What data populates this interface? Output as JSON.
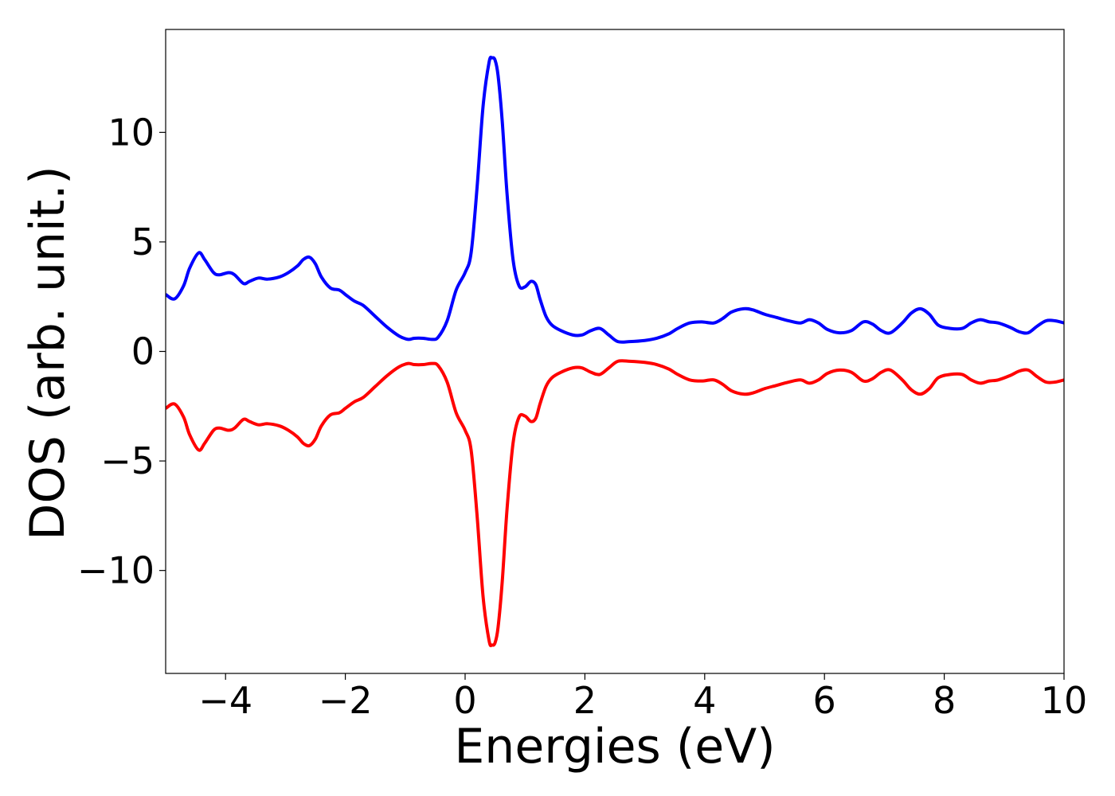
{
  "chart_data": {
    "type": "line",
    "title": "",
    "xlabel": "Energies (eV)",
    "ylabel": "DOS (arb. unit.)",
    "xlim": [
      -5,
      10
    ],
    "ylim": [
      -14.7,
      14.7
    ],
    "xticks": [
      {
        "value": -4,
        "label": "−4"
      },
      {
        "value": -2,
        "label": "−2"
      },
      {
        "value": 0,
        "label": "0"
      },
      {
        "value": 2,
        "label": "2"
      },
      {
        "value": 4,
        "label": "4"
      },
      {
        "value": 6,
        "label": "6"
      },
      {
        "value": 8,
        "label": "8"
      },
      {
        "value": 10,
        "label": "10"
      }
    ],
    "yticks": [
      {
        "value": -10,
        "label": "−10"
      },
      {
        "value": -5,
        "label": "−5"
      },
      {
        "value": 0,
        "label": "0"
      },
      {
        "value": 5,
        "label": "5"
      },
      {
        "value": 10,
        "label": "10"
      }
    ],
    "grid": false,
    "legend": "none",
    "series": [
      {
        "color": "#0000ff",
        "x": [
          -5.0,
          -4.85,
          -4.7,
          -4.6,
          -4.45,
          -4.35,
          -4.2,
          -4.1,
          -3.95,
          -3.85,
          -3.7,
          -3.6,
          -3.45,
          -3.3,
          -3.1,
          -2.95,
          -2.8,
          -2.7,
          -2.6,
          -2.5,
          -2.4,
          -2.25,
          -2.1,
          -2.0,
          -1.85,
          -1.7,
          -1.5,
          -1.3,
          -1.1,
          -0.95,
          -0.85,
          -0.7,
          -0.55,
          -0.45,
          -0.3,
          -0.15,
          0.0,
          0.1,
          0.2,
          0.3,
          0.4,
          0.45,
          0.5,
          0.55,
          0.62,
          0.7,
          0.8,
          0.9,
          1.0,
          1.1,
          1.18,
          1.25,
          1.35,
          1.45,
          1.6,
          1.8,
          1.95,
          2.1,
          2.25,
          2.4,
          2.55,
          2.75,
          3.0,
          3.2,
          3.4,
          3.55,
          3.75,
          3.95,
          4.15,
          4.3,
          4.45,
          4.65,
          4.8,
          5.0,
          5.2,
          5.4,
          5.6,
          5.75,
          5.9,
          6.05,
          6.25,
          6.45,
          6.65,
          6.8,
          6.95,
          7.1,
          7.3,
          7.45,
          7.6,
          7.75,
          7.9,
          8.1,
          8.3,
          8.45,
          8.6,
          8.75,
          8.9,
          9.1,
          9.25,
          9.4,
          9.55,
          9.7,
          9.85,
          10.0
        ],
        "y": [
          2.6,
          2.4,
          3.0,
          3.8,
          4.5,
          4.2,
          3.6,
          3.5,
          3.6,
          3.5,
          3.1,
          3.2,
          3.35,
          3.3,
          3.4,
          3.6,
          3.9,
          4.2,
          4.3,
          4.0,
          3.4,
          2.9,
          2.8,
          2.6,
          2.3,
          2.1,
          1.6,
          1.1,
          0.7,
          0.55,
          0.6,
          0.6,
          0.55,
          0.65,
          1.4,
          2.8,
          3.6,
          4.5,
          7.5,
          11.2,
          13.2,
          13.4,
          13.3,
          12.6,
          10.5,
          7.2,
          4.2,
          3.0,
          2.95,
          3.2,
          3.05,
          2.4,
          1.6,
          1.2,
          0.95,
          0.75,
          0.75,
          0.95,
          1.05,
          0.75,
          0.45,
          0.45,
          0.5,
          0.6,
          0.8,
          1.05,
          1.3,
          1.35,
          1.3,
          1.5,
          1.8,
          1.95,
          1.9,
          1.7,
          1.55,
          1.4,
          1.3,
          1.45,
          1.3,
          1.0,
          0.85,
          0.95,
          1.35,
          1.25,
          0.95,
          0.85,
          1.3,
          1.75,
          1.95,
          1.7,
          1.2,
          1.05,
          1.05,
          1.3,
          1.45,
          1.35,
          1.3,
          1.1,
          0.9,
          0.85,
          1.15,
          1.4,
          1.4,
          1.3
        ]
      },
      {
        "color": "#ff0000",
        "x": [
          -5.0,
          -4.85,
          -4.7,
          -4.6,
          -4.45,
          -4.35,
          -4.2,
          -4.1,
          -3.95,
          -3.85,
          -3.7,
          -3.6,
          -3.45,
          -3.3,
          -3.1,
          -2.95,
          -2.8,
          -2.7,
          -2.6,
          -2.5,
          -2.4,
          -2.25,
          -2.1,
          -2.0,
          -1.85,
          -1.7,
          -1.5,
          -1.3,
          -1.1,
          -0.95,
          -0.85,
          -0.7,
          -0.55,
          -0.45,
          -0.3,
          -0.15,
          0.0,
          0.1,
          0.2,
          0.3,
          0.4,
          0.45,
          0.5,
          0.55,
          0.62,
          0.7,
          0.8,
          0.9,
          1.0,
          1.1,
          1.18,
          1.25,
          1.35,
          1.45,
          1.6,
          1.8,
          1.95,
          2.1,
          2.25,
          2.4,
          2.55,
          2.75,
          3.0,
          3.2,
          3.4,
          3.55,
          3.75,
          3.95,
          4.15,
          4.3,
          4.45,
          4.65,
          4.8,
          5.0,
          5.2,
          5.4,
          5.6,
          5.75,
          5.9,
          6.05,
          6.25,
          6.45,
          6.65,
          6.8,
          6.95,
          7.1,
          7.3,
          7.45,
          7.6,
          7.75,
          7.9,
          8.1,
          8.3,
          8.45,
          8.6,
          8.75,
          8.9,
          9.1,
          9.25,
          9.4,
          9.55,
          9.7,
          9.85,
          10.0
        ],
        "y": [
          -2.6,
          -2.4,
          -3.0,
          -3.8,
          -4.5,
          -4.2,
          -3.6,
          -3.5,
          -3.6,
          -3.5,
          -3.1,
          -3.2,
          -3.35,
          -3.3,
          -3.4,
          -3.6,
          -3.9,
          -4.2,
          -4.3,
          -4.0,
          -3.4,
          -2.9,
          -2.8,
          -2.6,
          -2.3,
          -2.1,
          -1.6,
          -1.1,
          -0.7,
          -0.55,
          -0.6,
          -0.6,
          -0.55,
          -0.65,
          -1.4,
          -2.8,
          -3.6,
          -4.5,
          -7.5,
          -11.2,
          -13.2,
          -13.4,
          -13.3,
          -12.6,
          -10.5,
          -7.2,
          -4.2,
          -3.0,
          -2.95,
          -3.2,
          -3.05,
          -2.4,
          -1.6,
          -1.2,
          -0.95,
          -0.75,
          -0.75,
          -0.95,
          -1.05,
          -0.75,
          -0.45,
          -0.45,
          -0.5,
          -0.6,
          -0.8,
          -1.05,
          -1.3,
          -1.35,
          -1.3,
          -1.5,
          -1.8,
          -1.95,
          -1.9,
          -1.7,
          -1.55,
          -1.4,
          -1.3,
          -1.45,
          -1.3,
          -1.0,
          -0.85,
          -0.95,
          -1.35,
          -1.25,
          -0.95,
          -0.85,
          -1.3,
          -1.75,
          -1.95,
          -1.7,
          -1.2,
          -1.05,
          -1.05,
          -1.3,
          -1.45,
          -1.35,
          -1.3,
          -1.1,
          -0.9,
          -0.85,
          -1.15,
          -1.4,
          -1.4,
          -1.3
        ]
      }
    ]
  }
}
